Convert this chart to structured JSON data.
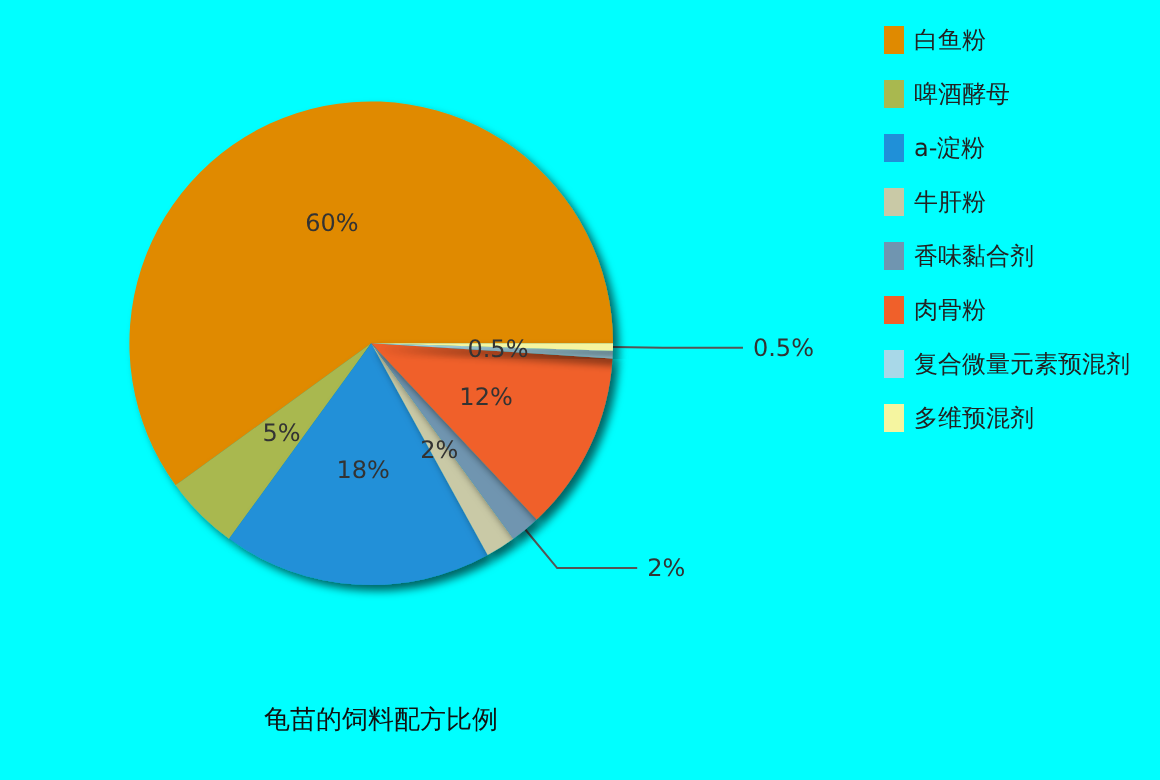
{
  "chart_data": {
    "type": "pie",
    "title": "龟苗的饲料配方比例",
    "categories": [
      "白鱼粉",
      "啤酒酵母",
      "a-淀粉",
      "牛肝粉",
      "香味黏合剂",
      "肉骨粉",
      "复合微量元素预混剂",
      "多维预混剂"
    ],
    "values": [
      60,
      5,
      18,
      2,
      2,
      12,
      0.5,
      0.5
    ],
    "value_labels": [
      "60%",
      "5%",
      "18%",
      "2%",
      "2%",
      "12%",
      "0.5%",
      "0.5%"
    ],
    "colors": [
      "#e08a00",
      "#a9b84f",
      "#2090d8",
      "#c9c9a6",
      "#7095b0",
      "#f0602a",
      "#a8d8e8",
      "#f5f5a0"
    ],
    "legend": "top right"
  }
}
